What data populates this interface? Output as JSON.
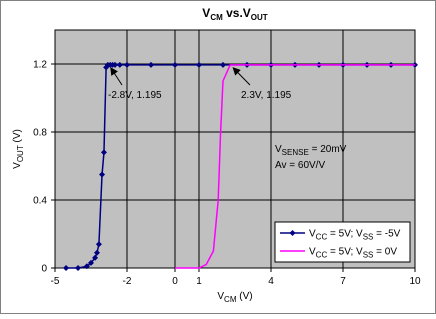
{
  "chart_data": {
    "type": "line",
    "title": [
      "V",
      "CM",
      " vs.V",
      "OUT"
    ],
    "x_label": [
      "V",
      "CM",
      " (V)"
    ],
    "y_label": [
      "V",
      "OUT",
      " (V)"
    ],
    "xlim": [
      -5,
      10
    ],
    "ylim": [
      0,
      1.4
    ],
    "xticks": [
      -5,
      -2,
      0,
      1,
      4,
      7,
      10
    ],
    "yticks": [
      0,
      0.4,
      0.8,
      1.2
    ],
    "grid": true,
    "legend": "lower right",
    "annotations": [
      "-2.8V, 1.195",
      "2.3V, 1.195",
      [
        "V",
        "SENSE",
        " = 20mV"
      ],
      "Av = 60V/V"
    ],
    "series": [
      {
        "name": [
          "V",
          "CC",
          " = 5V; V",
          "SS",
          " = -5V"
        ],
        "color": "#000080",
        "marker": "diamond",
        "x": [
          -4.54,
          -4.04,
          -3.67,
          -3.5,
          -3.33,
          -3.25,
          -3.17,
          -3.04,
          -2.96,
          -2.87,
          -2.8,
          -2.7,
          -2.6,
          -2.5,
          -2.3,
          -2,
          -1,
          0,
          1,
          2,
          3,
          4,
          5,
          6,
          7,
          8,
          9,
          10
        ],
        "values": [
          0,
          0,
          0.01,
          0.03,
          0.06,
          0.09,
          0.14,
          0.55,
          0.68,
          1.18,
          1.195,
          1.195,
          1.195,
          1.195,
          1.195,
          1.195,
          1.195,
          1.195,
          1.195,
          1.195,
          1.195,
          1.195,
          1.195,
          1.195,
          1.195,
          1.195,
          1.195,
          1.195
        ]
      },
      {
        "name": [
          "V",
          "CC",
          " = 5V; V",
          "SS",
          " = 0V"
        ],
        "color": "#ff00ff",
        "marker": "none",
        "x": [
          0,
          1,
          1.3,
          1.6,
          1.8,
          1.9,
          2.0,
          2.3,
          10
        ],
        "values": [
          0,
          0,
          0.02,
          0.1,
          0.4,
          0.8,
          1.1,
          1.195,
          1.195
        ]
      }
    ]
  }
}
